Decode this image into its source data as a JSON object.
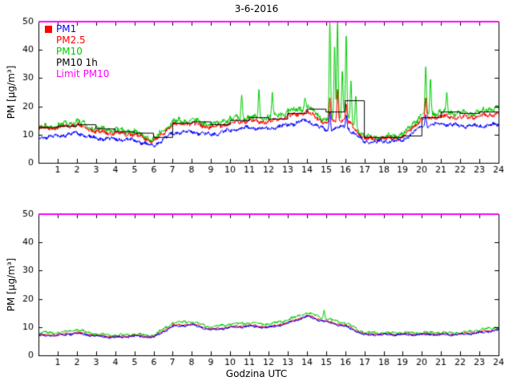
{
  "figure_title": "3-6-2016",
  "chart_data": [
    {
      "type": "line",
      "title": "3-6-2016",
      "xlabel": "",
      "ylabel": "PM [µg/m³]",
      "xlim": [
        0,
        24
      ],
      "ylim": [
        0,
        50
      ],
      "xticks": [
        1,
        2,
        3,
        4,
        5,
        6,
        7,
        8,
        9,
        10,
        11,
        12,
        13,
        14,
        15,
        16,
        17,
        18,
        19,
        20,
        21,
        22,
        23,
        24
      ],
      "yticks": [
        0,
        10,
        20,
        30,
        40,
        50
      ],
      "grid": false,
      "legend_position": "upper-left-inside",
      "legend_marker_color": "#ff0000",
      "legend": [
        {
          "label": "PM1",
          "color": "#0000ff"
        },
        {
          "label": "PM2.5",
          "color": "#ff0000"
        },
        {
          "label": "PM10",
          "color": "#00cc00"
        },
        {
          "label": "PM10 1h",
          "color": "#000000"
        },
        {
          "label": "Limit PM10",
          "color": "#ff00ff"
        }
      ],
      "limit_line": {
        "name": "Limit PM10",
        "y": 50,
        "color": "#ff00ff"
      },
      "series": [
        {
          "name": "PM10",
          "color": "#00cc00",
          "style": "noisy",
          "noise": 1.4,
          "hourly_ugm3": [
            12.5,
            13,
            14.5,
            12,
            11.5,
            11,
            8,
            14.5,
            15,
            13.5,
            15.5,
            16,
            16,
            18,
            20,
            15,
            17,
            9,
            9,
            10,
            17,
            18,
            17.5,
            18,
            20
          ],
          "spikes": [
            [
              10.6,
              24
            ],
            [
              11.5,
              26
            ],
            [
              12.2,
              25
            ],
            [
              13.9,
              23
            ],
            [
              15.2,
              50
            ],
            [
              15.45,
              42
            ],
            [
              15.6,
              50
            ],
            [
              15.85,
              33
            ],
            [
              16.05,
              46
            ],
            [
              16.3,
              29
            ],
            [
              16.55,
              24
            ],
            [
              20.2,
              34
            ],
            [
              20.45,
              30
            ],
            [
              21.3,
              25
            ]
          ]
        },
        {
          "name": "PM2.5",
          "color": "#ff0000",
          "style": "noisy",
          "noise": 1.0,
          "hourly_ugm3": [
            12,
            12.5,
            13.5,
            11,
            10.5,
            10,
            7.5,
            13.5,
            14,
            12.5,
            14,
            15,
            14.5,
            16.5,
            18,
            14,
            15.5,
            8.5,
            8.5,
            9,
            15.5,
            16.5,
            16,
            16.5,
            17.5
          ],
          "spikes": [
            [
              15.2,
              23
            ],
            [
              15.6,
              26
            ],
            [
              16.05,
              21
            ],
            [
              20.2,
              23
            ]
          ]
        },
        {
          "name": "PM1",
          "color": "#0000ff",
          "style": "noisy",
          "noise": 0.9,
          "hourly_ugm3": [
            9,
            9.5,
            10.5,
            8.5,
            8.5,
            8,
            6,
            10.5,
            11,
            10,
            11.5,
            12.5,
            12,
            13.5,
            15,
            11.5,
            13,
            7.5,
            7.5,
            8,
            13,
            14,
            13,
            13,
            13.5
          ],
          "spikes": [
            [
              15.2,
              18
            ],
            [
              16.05,
              17
            ],
            [
              20.2,
              17
            ]
          ]
        },
        {
          "name": "PM10 1h",
          "color": "#000000",
          "style": "step",
          "hourly_step_ugm3": [
            12.5,
            13,
            13.5,
            12,
            11,
            10.5,
            9,
            14,
            14.5,
            13.5,
            15,
            16,
            15.5,
            17.5,
            19,
            18,
            22,
            9,
            9,
            9.5,
            16,
            18,
            17.5,
            18
          ]
        }
      ]
    },
    {
      "type": "line",
      "title": "",
      "xlabel": "Godzina UTC",
      "ylabel": "PM [µg/m³]",
      "xlim": [
        0,
        24
      ],
      "ylim": [
        0,
        50
      ],
      "xticks": [
        1,
        2,
        3,
        4,
        5,
        6,
        7,
        8,
        9,
        10,
        11,
        12,
        13,
        14,
        15,
        16,
        17,
        18,
        19,
        20,
        21,
        22,
        23,
        24
      ],
      "yticks": [
        0,
        10,
        20,
        30,
        40,
        50
      ],
      "grid": false,
      "limit_line": {
        "name": "Limit PM10",
        "y": 50,
        "color": "#ff00ff"
      },
      "series": [
        {
          "name": "PM10",
          "color": "#00cc00",
          "style": "noisy",
          "noise": 0.6,
          "hourly_ugm3": [
            8,
            8,
            9,
            7.5,
            7,
            7.5,
            7,
            11.5,
            12,
            10,
            11,
            11.5,
            11,
            12.5,
            15,
            13,
            11.5,
            8,
            8,
            8,
            8,
            8,
            8,
            9,
            10
          ],
          "spikes": [
            [
              14.9,
              16
            ]
          ]
        },
        {
          "name": "PM2.5",
          "color": "#ff0000",
          "style": "noisy",
          "noise": 0.5,
          "hourly_ugm3": [
            7.2,
            7.2,
            8,
            7,
            6.5,
            7,
            6.5,
            10.5,
            11,
            9.2,
            10,
            10.5,
            10,
            11.5,
            14,
            12,
            10.5,
            7.5,
            7.5,
            7.5,
            7.5,
            7.5,
            7.5,
            8.2,
            9.2
          ],
          "spikes": []
        },
        {
          "name": "PM1",
          "color": "#0000ff",
          "style": "noisy",
          "noise": 0.5,
          "hourly_ugm3": [
            7,
            7,
            7.8,
            6.8,
            6.3,
            6.8,
            6.3,
            10.2,
            10.8,
            9,
            9.8,
            10.3,
            9.8,
            11.3,
            13.8,
            11.8,
            10.3,
            7.3,
            7.3,
            7.3,
            7.3,
            7.3,
            7.3,
            8,
            9
          ],
          "spikes": []
        }
      ]
    }
  ]
}
